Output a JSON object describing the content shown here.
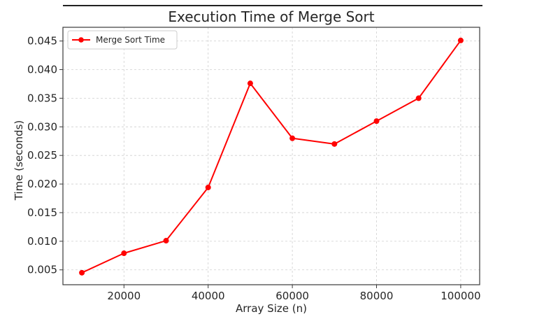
{
  "chart_data": {
    "type": "line",
    "title": "Execution Time of Merge Sort",
    "xlabel": "Array Size (n)",
    "ylabel": "Time (seconds)",
    "x": [
      10000,
      20000,
      30000,
      40000,
      50000,
      60000,
      70000,
      80000,
      90000,
      100000
    ],
    "series": [
      {
        "name": "Merge Sort Time",
        "color": "#ff0000",
        "marker": "circle",
        "values": [
          0.0045,
          0.0079,
          0.0101,
          0.0194,
          0.0376,
          0.028,
          0.027,
          0.031,
          0.035,
          0.0451
        ]
      }
    ],
    "xlim": [
      5500,
      104500
    ],
    "ylim": [
      0.0024,
      0.0474
    ],
    "xticks": [
      20000,
      40000,
      60000,
      80000,
      100000
    ],
    "xtick_labels": [
      "20000",
      "40000",
      "60000",
      "80000",
      "100000"
    ],
    "yticks": [
      0.005,
      0.01,
      0.015,
      0.02,
      0.025,
      0.03,
      0.035,
      0.04,
      0.045
    ],
    "ytick_labels": [
      "0.005",
      "0.010",
      "0.015",
      "0.020",
      "0.025",
      "0.030",
      "0.035",
      "0.040",
      "0.045"
    ],
    "grid": true,
    "legend": "top-left"
  }
}
